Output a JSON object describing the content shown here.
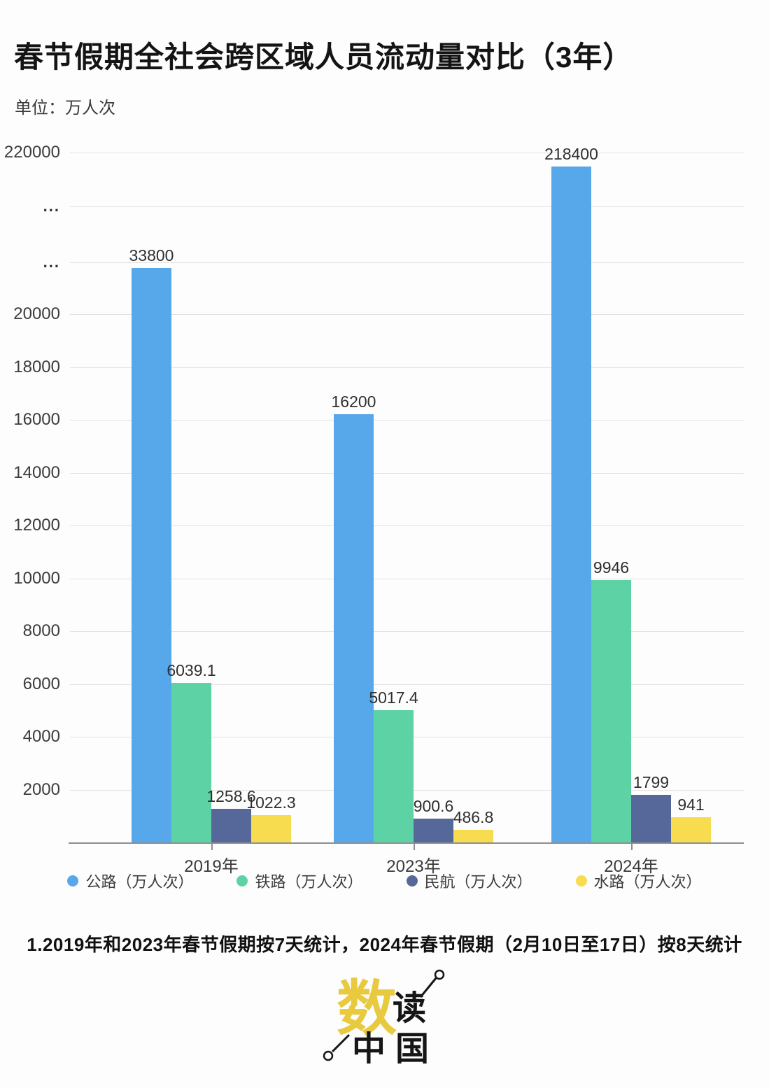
{
  "chart_data": {
    "type": "bar",
    "title": "春节假期全社会跨区域人员流动量对比（3年）",
    "unit_label": "单位：万人次",
    "categories": [
      "2019年",
      "2023年",
      "2024年"
    ],
    "series": [
      {
        "name": "公路（万人次）",
        "color": "#57A8EA",
        "values": [
          33800,
          16200,
          218400
        ]
      },
      {
        "name": "铁路（万人次）",
        "color": "#5DD2A5",
        "values": [
          6039.1,
          5017.4,
          9946
        ]
      },
      {
        "name": "民航（万人次）",
        "color": "#56689A",
        "values": [
          1258.6,
          900.6,
          1799
        ]
      },
      {
        "name": "水路（万人次）",
        "color": "#F8DC4F",
        "values": [
          1022.3,
          486.8,
          941
        ]
      }
    ],
    "y_axis": {
      "ticks": [
        "220000",
        "...",
        "...",
        "20000",
        "18000",
        "16000",
        "14000",
        "12000",
        "10000",
        "8000",
        "6000",
        "4000",
        "2000"
      ],
      "broken_axis": true,
      "ylim_linear_section": [
        0,
        20000
      ]
    },
    "xlabel": "",
    "ylabel": "万人次",
    "grid": true,
    "legend_position": "bottom",
    "value_labels": "above-bars"
  },
  "footnote": "1.2019年和2023年春节假期按7天统计，2024年春节假期（2月10日至17日）按8天统计",
  "logo": {
    "char_main": "数",
    "char_second": "读",
    "char_bottom": "中国",
    "main_color": "#E9C93E",
    "ink_color": "#161616"
  }
}
